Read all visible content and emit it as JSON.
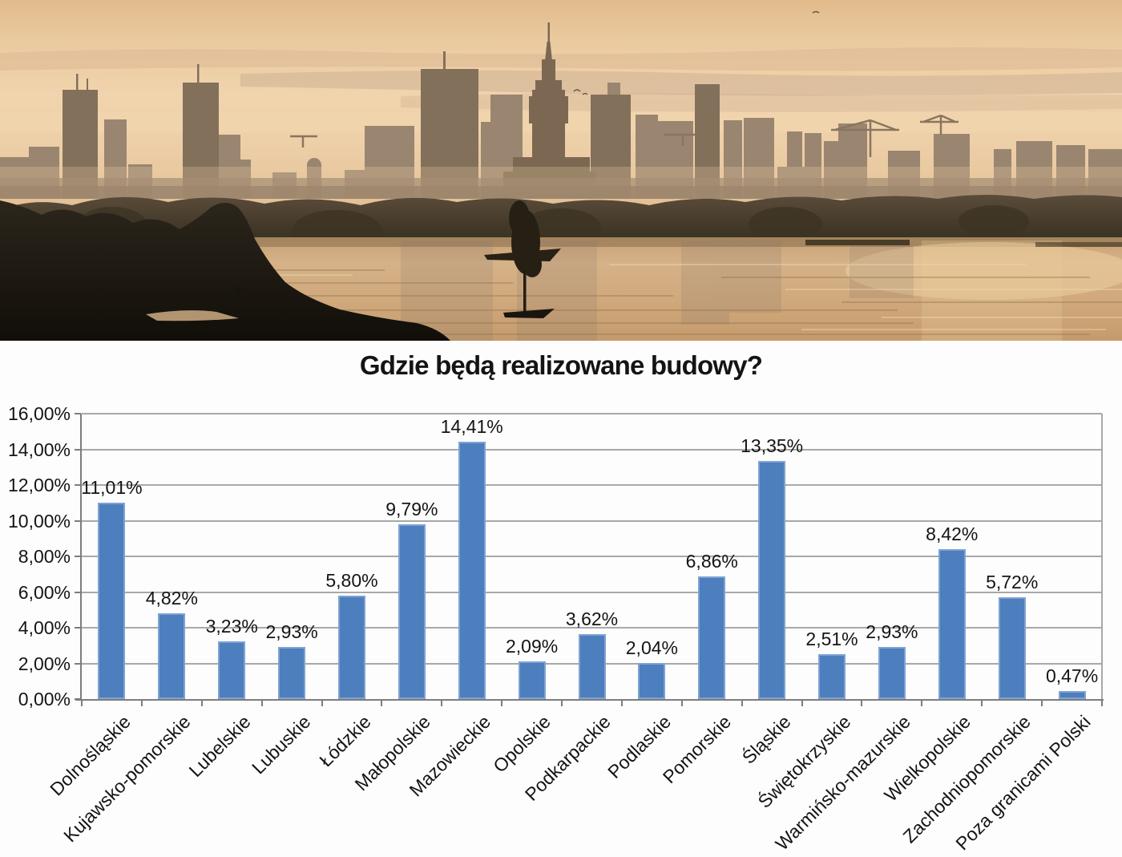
{
  "photo": {
    "subject_label": ""
  },
  "chart_data": {
    "type": "bar",
    "title": "Gdzie będą realizowane budowy?",
    "categories": [
      "Dolnośląskie",
      "Kujawsko-pomorskie",
      "Lubelskie",
      "Lubuskie",
      "Łódzkie",
      "Małopolskie",
      "Mazowieckie",
      "Opolskie",
      "Podkarpackie",
      "Podlaskie",
      "Pomorskie",
      "Śląskie",
      "Świętokrzyskie",
      "Warmińsko-mazurskie",
      "Wielkopolskie",
      "Zachodniopomorskie",
      "Poza granicami Polski"
    ],
    "values": [
      11.01,
      4.82,
      3.23,
      2.93,
      5.8,
      9.79,
      14.41,
      2.09,
      3.62,
      2.04,
      6.86,
      13.35,
      2.51,
      2.93,
      8.42,
      5.72,
      0.47
    ],
    "value_labels": [
      "11,01%",
      "4,82%",
      "3,23%",
      "2,93%",
      "5,80%",
      "9,79%",
      "14,41%",
      "2,09%",
      "3,62%",
      "2,04%",
      "6,86%",
      "13,35%",
      "2,51%",
      "2,93%",
      "8,42%",
      "5,72%",
      "0,47%"
    ],
    "ylim": [
      0,
      16
    ],
    "ytick_step": 2,
    "ytick_labels": [
      "0,00%",
      "2,00%",
      "4,00%",
      "6,00%",
      "8,00%",
      "10,00%",
      "12,00%",
      "14,00%",
      "16,00%"
    ],
    "grid": true,
    "legend": "none",
    "bar_color": "#4d7ebd",
    "bar_border_color": "#7fa3d3",
    "gridline_color": "#a8a8a8",
    "axis_color": "#7d7d7d",
    "text_color": "#141414"
  }
}
